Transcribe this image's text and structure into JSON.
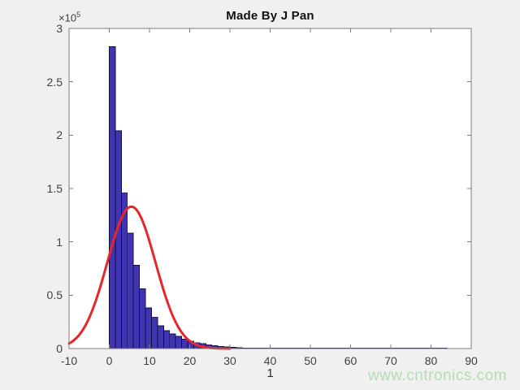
{
  "title": "Made By J Pan",
  "x_axis": {
    "label": "1",
    "ticks": [
      -10,
      0,
      10,
      20,
      30,
      40,
      50,
      60,
      70,
      80,
      90
    ]
  },
  "y_axis": {
    "tick_labels": [
      "0",
      "0.5",
      "1",
      "1.5",
      "2",
      "2.5",
      "3"
    ],
    "tick_scale": 100000,
    "multiplier_base": "×10",
    "multiplier_exponent": "5"
  },
  "watermark": "www.cntronics.com",
  "colors": {
    "figure_background": "#f0f0f0",
    "plot_background": "#ffffff",
    "axis_box": "#7d7d7d",
    "tick": "#7d7d7d",
    "tick_label": "#3f3f3f",
    "title": "#111111",
    "bar_fill": "#4134b3",
    "bar_edge": "#10103a",
    "fit_curve": "#e8262a",
    "watermark": "#b7dbb7"
  },
  "chart_data": {
    "type": "bar",
    "subtype": "histogram-with-normal-fit",
    "title": "Made By J Pan",
    "xlabel": "1",
    "ylabel": "",
    "x_range": [
      -10,
      90
    ],
    "y_range": [
      0,
      300000
    ],
    "grid": false,
    "legend": "none",
    "histogram": {
      "bin_start": 0,
      "bin_width": 1.5,
      "counts": [
        283000,
        204000,
        146000,
        108000,
        78000,
        56000,
        38000,
        29500,
        21400,
        16900,
        13600,
        11400,
        8900,
        7000,
        5500,
        4500,
        3600,
        2800,
        2000,
        1500,
        1100,
        800,
        600,
        450,
        340,
        260,
        190,
        145,
        110,
        82,
        62,
        46,
        35,
        26,
        20,
        15,
        11,
        8,
        6,
        5,
        4,
        3,
        2,
        2,
        1,
        1,
        1,
        1,
        1,
        1,
        1,
        1,
        1,
        1,
        1,
        1
      ]
    },
    "normal_fit": {
      "shape": "gaussian",
      "peak": 133000,
      "mean": 5.5,
      "sigma": 6.0,
      "x_start": -10,
      "x_end": 30
    }
  }
}
